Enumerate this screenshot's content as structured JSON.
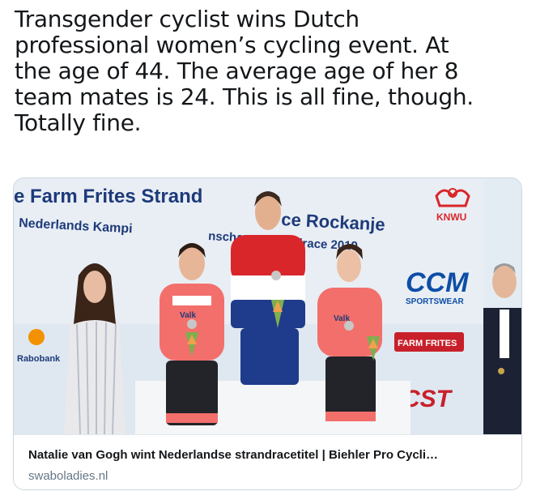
{
  "tweet": {
    "text": "Transgender cyclist wins Dutch\nprofessional women’s cycling event.  At\nthe age of 44.  The average age of her 8\nteam mates is 24.  This is all fine, though.\nTotally fine."
  },
  "card": {
    "title": "Natalie van Gogh wint Nederlandse strandracetitel | Biehler Pro Cycli…",
    "domain": "swaboladies.nl",
    "image": {
      "banner_line1": "e Farm Frites Strand",
      "banner_line1_cont": "ce Rockanje",
      "banner_line2": "Nederlands Kampi",
      "banner_line2_mid": "nschap",
      "banner_line2_end": "ndrace 2019",
      "knwu": "KNWU",
      "ccm": "CCM",
      "sportswear": "SPORTSWEAR",
      "farm_frites": "FARM FRITES",
      "cst": "CST",
      "rabobank": "Rabobank",
      "jersey_left": "Valk",
      "jersey_right": "Valk"
    }
  },
  "colors": {
    "text": "#14171a",
    "muted": "#657786",
    "border": "#ccd6dd",
    "banner_blue": "#1d3a7a",
    "ccm_blue": "#0d4ea6",
    "cst_red": "#c8202a",
    "jersey_pink": "#f36f6b",
    "dutch_red": "#d9262a",
    "dutch_blue": "#1f3b8c"
  }
}
